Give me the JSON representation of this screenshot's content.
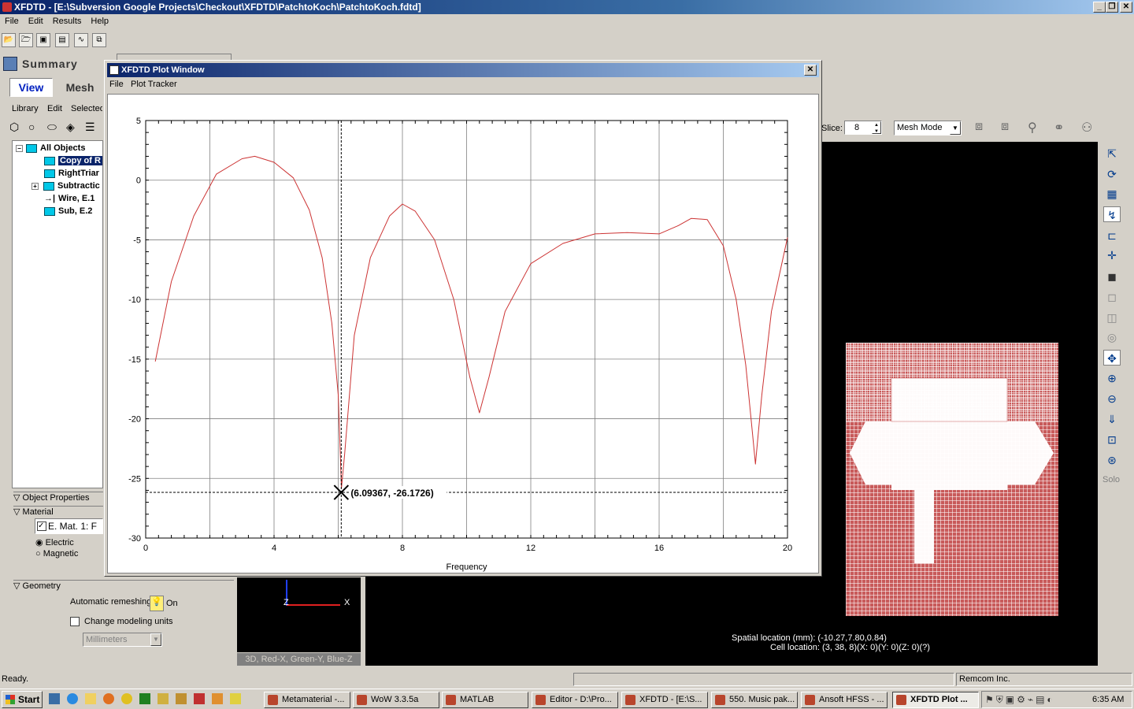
{
  "app": {
    "title": "XFDTD - [E:\\Subversion Google Projects\\Checkout\\XFDTD\\PatchtoKoch\\PatchtoKoch.fdtd]",
    "menu": [
      "File",
      "Edit",
      "Results",
      "Help"
    ]
  },
  "left_panel": {
    "summary_label": "Summary",
    "tabs": [
      "View",
      "Mesh"
    ],
    "submenu": [
      "Library",
      "Edit",
      "Selected"
    ],
    "tree": [
      {
        "label": "All Objects"
      },
      {
        "label": "Copy of R"
      },
      {
        "label": "RightTriar"
      },
      {
        "label": "Subtractic"
      },
      {
        "label": "Wire, E.1"
      },
      {
        "label": "Sub, E.2"
      }
    ],
    "object_properties_label": "Object Properties",
    "material_label": "Material",
    "material_value": "E. Mat. 1: F",
    "radio_electric": "Electric",
    "radio_magnetic": "Magnetic",
    "geometry_label": "Geometry",
    "auto_remesh_label": "Automatic remeshing",
    "auto_remesh_state": "On",
    "change_units_label": "Change modeling units",
    "units_value": "Millimeters"
  },
  "view_toolbar": {
    "slice_label": "Slice:",
    "slice_value": "8",
    "mode_value": "Mesh Mode"
  },
  "right_tools": {
    "solo_label": "Solo"
  },
  "axes_view": {
    "z_label": "Z",
    "x_label": "X",
    "legend": "3D, Red-X, Green-Y, Blue-Z"
  },
  "viewport": {
    "spatial_location": "Spatial location (mm): (-10.27,7.80,0.84)",
    "cell_location": "Cell location: (3, 38, 8)(X: 0)(Y: 0)(Z: 0)(?)"
  },
  "plot_window": {
    "title": "XFDTD Plot Window",
    "menu": [
      "File",
      "Plot Tracker"
    ],
    "tracker_label": "(6.09367, -26.1726)",
    "line_color": "#cc3333"
  },
  "chart_data": {
    "type": "line",
    "xlabel": "Frequency",
    "ylabel": "",
    "title": "",
    "xlim": [
      0,
      20
    ],
    "ylim": [
      -30,
      5
    ],
    "x_ticks": [
      "0",
      "4",
      "8",
      "12",
      "16",
      "20"
    ],
    "y_ticks": [
      "5",
      "0",
      "-5",
      "-10",
      "-15",
      "-20",
      "-25",
      "-30"
    ],
    "grid": true,
    "series": [
      {
        "x": [
          0.3,
          0.8,
          1.5,
          2.2,
          3.0,
          3.4,
          4.0,
          4.6,
          5.1,
          5.5,
          5.8,
          6.0,
          6.1,
          6.2,
          6.5,
          7.0,
          7.6,
          8.0,
          8.4,
          9.0,
          9.6,
          10.1,
          10.4,
          10.7,
          11.2,
          12.0,
          13.0,
          14.0,
          15.0,
          16.0,
          16.6,
          17.0,
          17.5,
          18.0,
          18.4,
          18.7,
          18.9,
          19.0,
          19.2,
          19.5,
          20.0
        ],
        "y": [
          -15.2,
          -8.5,
          -3.0,
          0.5,
          1.8,
          2.0,
          1.5,
          0.2,
          -2.5,
          -6.5,
          -12.0,
          -18.0,
          -25.8,
          -23.0,
          -13.0,
          -6.5,
          -3.0,
          -2.0,
          -2.6,
          -5.0,
          -10.0,
          -16.5,
          -19.5,
          -16.5,
          -11.0,
          -7.0,
          -5.3,
          -4.5,
          -4.4,
          -4.5,
          -3.8,
          -3.2,
          -3.3,
          -5.5,
          -10.0,
          -15.5,
          -21.0,
          -23.8,
          -18.0,
          -11.0,
          -4.8
        ]
      }
    ]
  },
  "status": {
    "left": "Ready.",
    "right": "Remcom Inc."
  },
  "taskbar": {
    "start": "Start",
    "tasks": [
      "Metamaterial -...",
      "WoW 3.3.5a",
      "MATLAB",
      "Editor - D:\\Pro...",
      "XFDTD - [E:\\S...",
      "550. Music pak...",
      "Ansoft HFSS - ...",
      "XFDTD Plot ..."
    ],
    "clock": "6:35 AM"
  }
}
